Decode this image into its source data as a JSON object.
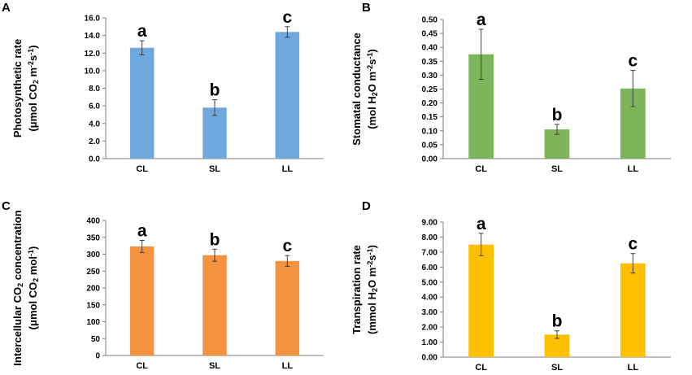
{
  "chart_data": [
    {
      "panel": "A",
      "type": "bar",
      "categories": [
        "CL",
        "SL",
        "LL"
      ],
      "values": [
        12.6,
        5.8,
        14.4
      ],
      "errors": [
        0.8,
        0.9,
        0.6
      ],
      "letters": [
        "a",
        "b",
        "c"
      ],
      "color": "#6FA8DC",
      "ylim": [
        0,
        16
      ],
      "ytick_step": 2,
      "ytick_decimals": 1,
      "ylabel_line1": [
        {
          "t": "Photosynthetic rate",
          "s": ""
        }
      ],
      "ylabel_line2": [
        {
          "t": "(μmol CO",
          "s": ""
        },
        {
          "t": "2",
          "s": "sub"
        },
        {
          "t": " m",
          "s": ""
        },
        {
          "t": "-2",
          "s": "sup"
        },
        {
          "t": "s",
          "s": ""
        },
        {
          "t": "-1",
          "s": "sup"
        },
        {
          "t": ")",
          "s": ""
        }
      ]
    },
    {
      "panel": "B",
      "type": "bar",
      "categories": [
        "CL",
        "SL",
        "LL"
      ],
      "values": [
        0.375,
        0.105,
        0.252
      ],
      "errors": [
        0.09,
        0.018,
        0.065
      ],
      "letters": [
        "a",
        "b",
        "c"
      ],
      "color": "#7DB55A",
      "ylim": [
        0,
        0.5
      ],
      "ytick_step": 0.05,
      "ytick_decimals": 2,
      "ylabel_line1": [
        {
          "t": "Stomatal conductance",
          "s": ""
        }
      ],
      "ylabel_line2": [
        {
          "t": "(mol H",
          "s": ""
        },
        {
          "t": "2",
          "s": "sub"
        },
        {
          "t": "O m",
          "s": ""
        },
        {
          "t": "-2",
          "s": "sup"
        },
        {
          "t": "s",
          "s": ""
        },
        {
          "t": "-1",
          "s": "sup"
        },
        {
          "t": ")",
          "s": ""
        }
      ]
    },
    {
      "panel": "C",
      "type": "bar",
      "categories": [
        "CL",
        "SL",
        "LL"
      ],
      "values": [
        323,
        297,
        280
      ],
      "errors": [
        18,
        18,
        16
      ],
      "letters": [
        "a",
        "b",
        "c"
      ],
      "color": "#F4923F",
      "ylim": [
        0,
        400
      ],
      "ytick_step": 50,
      "ytick_decimals": 0,
      "ylabel_line1": [
        {
          "t": "Intercellular CO",
          "s": ""
        },
        {
          "t": "2",
          "s": "sub"
        },
        {
          "t": " concentration",
          "s": ""
        }
      ],
      "ylabel_line2": [
        {
          "t": "(μmol CO",
          "s": ""
        },
        {
          "t": "2",
          "s": "sub"
        },
        {
          "t": " mol",
          "s": ""
        },
        {
          "t": "-1",
          "s": "sup"
        },
        {
          "t": ")",
          "s": ""
        }
      ]
    },
    {
      "panel": "D",
      "type": "bar",
      "categories": [
        "CL",
        "SL",
        "LL"
      ],
      "values": [
        7.5,
        1.5,
        6.25
      ],
      "errors": [
        0.75,
        0.25,
        0.65
      ],
      "letters": [
        "a",
        "b",
        "c"
      ],
      "color": "#FFC000",
      "ylim": [
        0,
        9
      ],
      "ytick_step": 1,
      "ytick_decimals": 2,
      "ylabel_line1": [
        {
          "t": "Transpiration rate",
          "s": ""
        }
      ],
      "ylabel_line2": [
        {
          "t": "(mmol H",
          "s": ""
        },
        {
          "t": "2",
          "s": "sub"
        },
        {
          "t": "O m",
          "s": ""
        },
        {
          "t": "-2",
          "s": "sup"
        },
        {
          "t": "s",
          "s": ""
        },
        {
          "t": "-1",
          "s": "sup"
        },
        {
          "t": ")",
          "s": ""
        }
      ]
    }
  ]
}
